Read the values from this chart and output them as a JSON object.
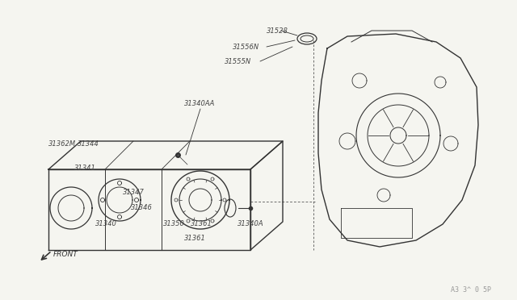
{
  "bg_color": "#f5f5f0",
  "line_color": "#333333",
  "watermark": "A3 3^ 0 5P",
  "labels": [
    [
      "31528",
      330,
      38
    ],
    [
      "31556N",
      288,
      58
    ],
    [
      "31555N",
      278,
      76
    ],
    [
      "31340AA",
      228,
      128
    ],
    [
      "31362M",
      60,
      178
    ],
    [
      "31344",
      96,
      178
    ],
    [
      "31341",
      92,
      208
    ],
    [
      "31347",
      152,
      238
    ],
    [
      "31346",
      162,
      258
    ],
    [
      "31340",
      118,
      278
    ],
    [
      "31350",
      202,
      278
    ],
    [
      "31361",
      236,
      278
    ],
    [
      "31340A",
      294,
      278
    ],
    [
      "31361",
      228,
      295
    ]
  ]
}
